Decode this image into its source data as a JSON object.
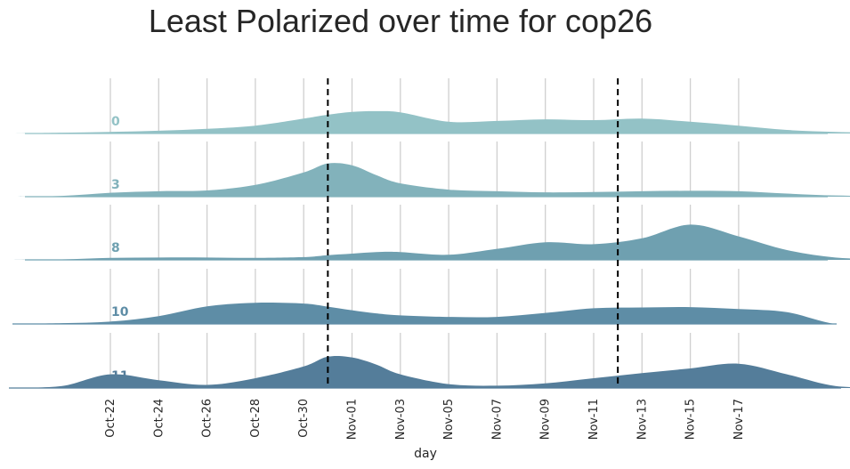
{
  "chart_data": {
    "type": "area",
    "title": "Least Polarized  over time for cop26",
    "xlabel": "day",
    "ylabel": "",
    "x_ticks": [
      "Oct-22",
      "Oct-24",
      "Oct-26",
      "Oct-28",
      "Oct-30",
      "Nov-01",
      "Nov-03",
      "Nov-05",
      "Nov-07",
      "Nov-09",
      "Nov-11",
      "Nov-13",
      "Nov-15",
      "Nov-17"
    ],
    "x_range": [
      "Oct-22",
      "Nov-17"
    ],
    "reference_lines": [
      "Oct-31",
      "Nov-12"
    ],
    "grid": true,
    "x_sample_days": [
      -4,
      -2,
      0,
      2,
      4,
      6,
      8,
      9,
      10,
      11,
      12,
      14,
      16,
      18,
      20,
      22,
      24,
      26,
      28,
      30,
      32,
      34,
      36,
      38,
      40
    ],
    "series": [
      {
        "name": "0",
        "color": "#93c2c6",
        "values": [
          0,
          0.02,
          0.04,
          0.07,
          0.12,
          0.2,
          0.38,
          0.48,
          0.55,
          0.57,
          0.54,
          0.3,
          0.32,
          0.36,
          0.34,
          0.38,
          0.3,
          0.2,
          0.09,
          0.04,
          0.02,
          0.01,
          0,
          0,
          0
        ]
      },
      {
        "name": "3",
        "color": "#82b2bb",
        "values": [
          0,
          0.02,
          0.1,
          0.14,
          0.16,
          0.3,
          0.62,
          0.85,
          0.8,
          0.55,
          0.34,
          0.18,
          0.14,
          0.11,
          0.12,
          0.14,
          0.15,
          0.14,
          0.08,
          0.03,
          0.02,
          0.01,
          0,
          0,
          0
        ]
      },
      {
        "name": "8",
        "color": "#6fa0b0",
        "values": [
          0,
          0.01,
          0.05,
          0.06,
          0.06,
          0.05,
          0.07,
          0.12,
          0.16,
          0.2,
          0.2,
          0.13,
          0.28,
          0.45,
          0.4,
          0.55,
          0.9,
          0.6,
          0.25,
          0.06,
          0.02,
          0.01,
          0,
          0,
          0
        ]
      },
      {
        "name": "10",
        "color": "#5e8da6",
        "values": [
          0,
          0.02,
          0.06,
          0.2,
          0.45,
          0.54,
          0.52,
          0.44,
          0.35,
          0.27,
          0.22,
          0.18,
          0.18,
          0.28,
          0.4,
          0.42,
          0.43,
          0.38,
          0.3,
          0.0,
          0.0,
          0.0,
          0,
          0,
          0
        ]
      },
      {
        "name": "11",
        "color": "#547d9a",
        "values": [
          0,
          0.05,
          0.35,
          0.2,
          0.08,
          0.25,
          0.55,
          0.8,
          0.78,
          0.6,
          0.35,
          0.1,
          0.06,
          0.12,
          0.25,
          0.38,
          0.5,
          0.62,
          0.35,
          0.05,
          0.02,
          0.01,
          0,
          0,
          0
        ]
      }
    ]
  }
}
